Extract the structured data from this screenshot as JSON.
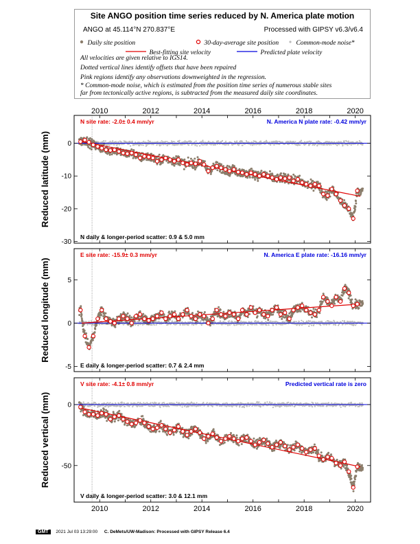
{
  "legend": {
    "title": "Site ANGO position time series reduced by N. America plate motion",
    "site_coords": "ANGO at 45.114°N 270.837°E",
    "processed": "Processed with GIPSY v6.3/v6.4",
    "daily_label": "Daily site position",
    "avg_label": "30-day-average site position",
    "cm_label": "Common-mode noise*",
    "fit_label": "Best-fitting site velocity",
    "pred_label": "Predicted plate velocity",
    "note1": "All velocities are given relative to IGS14.",
    "note2": "Dotted vertical lines identify offsets that have been repaired",
    "note3": "Pink regions identify any observations downweighted in the regression.",
    "note4": "* Common-mode noise, which is estimated from the position time series of numerous stable sites",
    "note5": "far from tectonically active regions, is subtracted from the measured daily site coordinates."
  },
  "colors": {
    "daily": "#8b7d6b",
    "avg_edge": "#e00000",
    "fit": "#e00000",
    "predicted": "#0000dd",
    "common_mode": "#bbbbbb"
  },
  "chart_data": [
    {
      "type": "scatter",
      "component": "north",
      "ylabel": "Reduced latitude (mm)",
      "site_rate": "N site rate:  -2.0± 0.4 mm/yr",
      "plate_rate": "N. America N plate rate:  -0.42 mm/yr",
      "scatter": "N daily & longer-period scatter:   0.9 &   5.0 mm",
      "xlim": [
        2009.0,
        2020.6
      ],
      "ylim": [
        -30.5,
        8.5
      ],
      "yticks": [
        0,
        -10,
        -20,
        -30
      ],
      "xticks": [
        2010,
        2012,
        2014,
        2016,
        2018,
        2020
      ],
      "offset_year": 2009.7,
      "fit": {
        "x": [
          2009.3,
          2020.2
        ],
        "y": [
          0.5,
          -16.2
        ]
      },
      "averages": {
        "x": [
          2009.25,
          2009.42,
          2009.58,
          2009.75,
          2009.92,
          2010.08,
          2010.25,
          2010.42,
          2010.58,
          2010.75,
          2010.92,
          2011.08,
          2011.25,
          2011.42,
          2011.58,
          2011.75,
          2011.92,
          2012.08,
          2012.25,
          2012.42,
          2012.58,
          2012.75,
          2012.92,
          2013.08,
          2013.25,
          2013.42,
          2013.58,
          2013.75,
          2013.92,
          2014.08,
          2014.25,
          2014.42,
          2014.58,
          2014.75,
          2014.92,
          2015.08,
          2015.25,
          2015.42,
          2015.58,
          2015.75,
          2015.92,
          2016.08,
          2016.25,
          2016.42,
          2016.58,
          2016.75,
          2016.92,
          2017.08,
          2017.25,
          2017.42,
          2017.58,
          2017.75,
          2017.92,
          2018.08,
          2018.25,
          2018.42,
          2018.58,
          2018.75,
          2018.92,
          2019.08,
          2019.25,
          2019.42,
          2019.58,
          2019.75,
          2019.92,
          2020.08
        ],
        "y": [
          0.5,
          1.0,
          0.3,
          -0.5,
          -1.0,
          -1.5,
          -2.0,
          -2.2,
          -2.0,
          -2.5,
          -3.0,
          -3.2,
          -3.0,
          -3.5,
          -4.5,
          -4.0,
          -4.2,
          -4.5,
          -5.5,
          -5.0,
          -4.5,
          -5.0,
          -5.5,
          -5.0,
          -6.0,
          -6.5,
          -6.0,
          -6.3,
          -5.5,
          -6.5,
          -8.5,
          -7.5,
          -7.0,
          -7.5,
          -8.0,
          -8.5,
          -8.0,
          -8.8,
          -9.0,
          -9.5,
          -9.0,
          -9.5,
          -10.0,
          -9.5,
          -10.0,
          -10.5,
          -11.0,
          -10.5,
          -10.8,
          -10.5,
          -11.5,
          -11.0,
          -12.0,
          -12.5,
          -13.0,
          -12.5,
          -13.0,
          -15.5,
          -16.0,
          -14.0,
          -15.5,
          -17.5,
          -19.0,
          -20.0,
          -23.0,
          -14.5
        ]
      }
    },
    {
      "type": "scatter",
      "component": "east",
      "ylabel": "Reduced longitude (mm)",
      "site_rate": "E site rate:  -15.9± 0.3 mm/yr",
      "plate_rate": "N. America E plate rate:  -16.16 mm/yr",
      "scatter": "E daily & longer-period scatter:   0.7 &   2.4 mm",
      "xlim": [
        2009.0,
        2020.6
      ],
      "ylim": [
        -5.6,
        8.6
      ],
      "yticks": [
        5,
        0,
        -5
      ],
      "xticks": [
        2010,
        2012,
        2014,
        2016,
        2018,
        2020
      ],
      "offset_year": 2009.7,
      "fit": {
        "x": [
          2009.3,
          2020.2
        ],
        "y": [
          0.0,
          2.2
        ]
      },
      "averages": {
        "x": [
          2009.25,
          2009.42,
          2009.58,
          2009.75,
          2009.92,
          2010.08,
          2010.25,
          2010.42,
          2010.58,
          2010.75,
          2010.92,
          2011.08,
          2011.25,
          2011.42,
          2011.58,
          2011.75,
          2011.92,
          2012.08,
          2012.25,
          2012.42,
          2012.58,
          2012.75,
          2012.92,
          2013.08,
          2013.25,
          2013.42,
          2013.58,
          2013.75,
          2013.92,
          2014.08,
          2014.25,
          2014.42,
          2014.58,
          2014.75,
          2014.92,
          2015.08,
          2015.25,
          2015.42,
          2015.58,
          2015.75,
          2015.92,
          2016.08,
          2016.25,
          2016.42,
          2016.58,
          2016.75,
          2016.92,
          2017.08,
          2017.25,
          2017.42,
          2017.58,
          2017.75,
          2017.92,
          2018.08,
          2018.25,
          2018.42,
          2018.58,
          2018.75,
          2018.92,
          2019.08,
          2019.25,
          2019.42,
          2019.58,
          2019.75,
          2019.92,
          2020.08
        ],
        "y": [
          1.5,
          -1.5,
          -2.8,
          -1.5,
          0.5,
          1.5,
          0.5,
          0.2,
          0.0,
          0.5,
          0.8,
          0.5,
          0.0,
          0.8,
          1.0,
          0.5,
          0.3,
          0.5,
          0.8,
          1.2,
          0.5,
          0.8,
          1.0,
          0.5,
          1.0,
          1.5,
          0.8,
          0.5,
          1.0,
          0.8,
          0.0,
          0.5,
          1.5,
          1.0,
          0.8,
          1.2,
          1.0,
          0.5,
          1.5,
          1.0,
          1.8,
          1.2,
          1.5,
          1.0,
          0.8,
          1.5,
          1.8,
          1.0,
          1.2,
          0.5,
          1.5,
          1.8,
          2.0,
          1.5,
          1.2,
          1.0,
          1.5,
          3.0,
          2.5,
          2.0,
          3.0,
          2.5,
          4.0,
          3.5,
          2.0,
          2.2
        ]
      }
    },
    {
      "type": "scatter",
      "component": "vertical",
      "ylabel": "Reduced vertical (mm)",
      "site_rate": "V site rate:  -4.1± 0.8 mm/yr",
      "plate_rate": "Predicted vertical rate is zero",
      "scatter": "V daily & longer-period scatter:   3.0 &   12.1 mm",
      "xlim": [
        2009.0,
        2020.6
      ],
      "ylim": [
        -80.0,
        22.0
      ],
      "yticks": [
        0,
        -50
      ],
      "xticks": [
        2010,
        2012,
        2014,
        2016,
        2018,
        2020
      ],
      "offset_year": 2009.7,
      "fit": {
        "x": [
          2009.3,
          2020.2
        ],
        "y": [
          -3.0,
          -51.0
        ]
      },
      "averages": {
        "x": [
          2009.25,
          2009.42,
          2009.58,
          2009.75,
          2009.92,
          2010.08,
          2010.25,
          2010.42,
          2010.58,
          2010.75,
          2010.92,
          2011.08,
          2011.25,
          2011.42,
          2011.58,
          2011.75,
          2011.92,
          2012.08,
          2012.25,
          2012.42,
          2012.58,
          2012.75,
          2012.92,
          2013.08,
          2013.25,
          2013.42,
          2013.58,
          2013.75,
          2013.92,
          2014.08,
          2014.25,
          2014.42,
          2014.58,
          2014.75,
          2014.92,
          2015.08,
          2015.25,
          2015.42,
          2015.58,
          2015.75,
          2015.92,
          2016.08,
          2016.25,
          2016.42,
          2016.58,
          2016.75,
          2016.92,
          2017.08,
          2017.25,
          2017.42,
          2017.58,
          2017.75,
          2017.92,
          2018.08,
          2018.25,
          2018.42,
          2018.58,
          2018.75,
          2018.92,
          2019.08,
          2019.25,
          2019.42,
          2019.58,
          2019.75,
          2019.92,
          2020.08
        ],
        "y": [
          -2.0,
          -6.0,
          -8.0,
          -8.0,
          -9.0,
          -7.0,
          -8.0,
          -12.0,
          -10.0,
          -9.0,
          -12.0,
          -14.0,
          -16.0,
          -15.0,
          -13.0,
          -15.0,
          -18.0,
          -20.0,
          -19.0,
          -17.0,
          -20.0,
          -23.0,
          -21.0,
          -18.0,
          -22.0,
          -25.0,
          -22.0,
          -20.0,
          -23.0,
          -28.0,
          -26.0,
          -24.0,
          -27.0,
          -30.0,
          -28.0,
          -26.0,
          -28.0,
          -30.0,
          -28.0,
          -27.0,
          -30.0,
          -33.0,
          -31.0,
          -29.0,
          -32.0,
          -35.0,
          -33.0,
          -31.0,
          -34.0,
          -37.0,
          -35.0,
          -33.0,
          -36.0,
          -39.0,
          -37.0,
          -36.0,
          -42.0,
          -45.0,
          -43.0,
          -44.0,
          -48.0,
          -50.0,
          -47.0,
          -55.0,
          -68.0,
          -51.0
        ]
      }
    }
  ],
  "footer": {
    "logo": "GMT",
    "date": "2021 Jul 03 13:29:00",
    "credit": "C. DeMets/UW-Madison: Processed with GIPSY Release 6.4"
  }
}
